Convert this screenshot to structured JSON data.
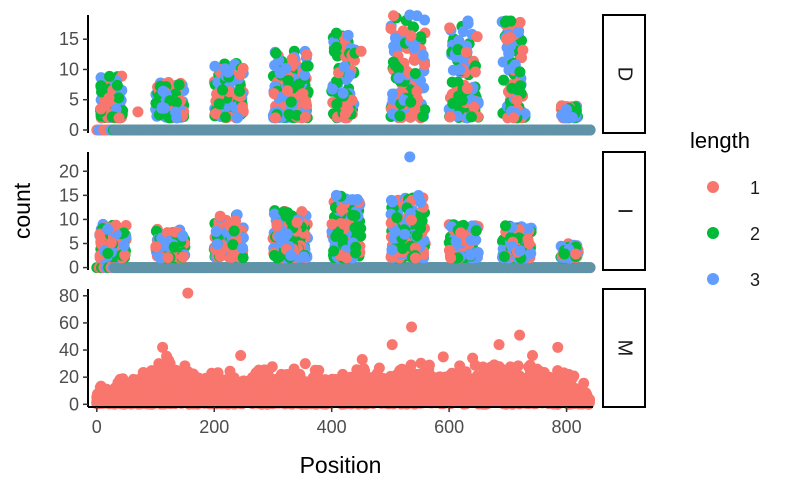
{
  "chart_data": {
    "type": "scatter",
    "xlabel": "Position",
    "ylabel": "count",
    "x_ticks": [
      0,
      200,
      400,
      600,
      800
    ],
    "xlim": [
      -15,
      845
    ],
    "legend": {
      "title": "length",
      "position": "right",
      "entries": [
        {
          "label": "1",
          "color": "#F8766D"
        },
        {
          "label": "2",
          "color": "#00BA38"
        },
        {
          "label": "3",
          "color": "#619CFF"
        }
      ]
    },
    "facets": [
      {
        "strip_label": "D",
        "ylim": [
          -0.5,
          19
        ],
        "y_ticks": [
          0,
          5,
          10,
          15
        ],
        "clusters": [
          {
            "x": [
              5,
              45
            ],
            "peak": 9,
            "series": [
              "1",
              "2",
              "3"
            ]
          },
          {
            "x": [
              100,
              150
            ],
            "peak": 8,
            "series": [
              "1",
              "2",
              "3"
            ]
          },
          {
            "x": [
              200,
              250
            ],
            "peak": 11,
            "series": [
              "1",
              "2",
              "3"
            ]
          },
          {
            "x": [
              300,
              360
            ],
            "peak": 13,
            "series": [
              "1",
              "2",
              "3"
            ]
          },
          {
            "x": [
              400,
              440
            ],
            "peak": 16,
            "series": [
              "1",
              "2",
              "3"
            ]
          },
          {
            "x": [
              500,
              560
            ],
            "peak": 19,
            "series": [
              "1",
              "2",
              "3"
            ]
          },
          {
            "x": [
              600,
              650
            ],
            "peak": 18,
            "series": [
              "1",
              "2",
              "3"
            ]
          },
          {
            "x": [
              690,
              730
            ],
            "peak": 18,
            "series": [
              "1",
              "2",
              "3"
            ]
          },
          {
            "x": [
              790,
              820
            ],
            "peak": 4,
            "series": [
              "1",
              "2",
              "3"
            ]
          }
        ],
        "outliers": [
          {
            "x": 70,
            "y": 3,
            "series": "1"
          },
          {
            "x": 408,
            "y": 16,
            "series": "2"
          },
          {
            "x": 450,
            "y": 13,
            "series": "1"
          },
          {
            "x": 533,
            "y": 19,
            "series": "3"
          },
          {
            "x": 632,
            "y": 18,
            "series": "3"
          },
          {
            "x": 698,
            "y": 18,
            "series": "2"
          },
          {
            "x": 705,
            "y": 18,
            "series": "2"
          }
        ]
      },
      {
        "strip_label": "I",
        "ylim": [
          -0.5,
          24
        ],
        "y_ticks": [
          0,
          5,
          10,
          15,
          20
        ],
        "clusters": [
          {
            "x": [
              5,
              50
            ],
            "peak": 9,
            "series": [
              "1",
              "2",
              "3"
            ]
          },
          {
            "x": [
              100,
              150
            ],
            "peak": 8,
            "series": [
              "1",
              "2",
              "3"
            ]
          },
          {
            "x": [
              200,
              250
            ],
            "peak": 11,
            "series": [
              "1",
              "2",
              "3"
            ]
          },
          {
            "x": [
              300,
              360
            ],
            "peak": 12,
            "series": [
              "1",
              "2",
              "3"
            ]
          },
          {
            "x": [
              400,
              450
            ],
            "peak": 15,
            "series": [
              "1",
              "2",
              "3"
            ]
          },
          {
            "x": [
              500,
              560
            ],
            "peak": 15,
            "series": [
              "1",
              "2",
              "3"
            ]
          },
          {
            "x": [
              600,
              650
            ],
            "peak": 9,
            "series": [
              "1",
              "2",
              "3"
            ]
          },
          {
            "x": [
              690,
              740
            ],
            "peak": 9,
            "series": [
              "1",
              "2",
              "3"
            ]
          },
          {
            "x": [
              790,
              820
            ],
            "peak": 5,
            "series": [
              "1",
              "2",
              "3"
            ]
          }
        ],
        "outliers": [
          {
            "x": 533,
            "y": 23,
            "series": "3"
          },
          {
            "x": 408,
            "y": 15,
            "series": "3"
          }
        ]
      },
      {
        "strip_label": "M",
        "ylim": [
          -2,
          85
        ],
        "y_ticks": [
          0,
          20,
          40,
          60,
          80
        ],
        "series": "1",
        "envelope": [
          [
            0,
            8
          ],
          [
            60,
            15
          ],
          [
            100,
            22
          ],
          [
            120,
            30
          ],
          [
            150,
            24
          ],
          [
            200,
            18
          ],
          [
            300,
            22
          ],
          [
            400,
            20
          ],
          [
            500,
            22
          ],
          [
            560,
            25
          ],
          [
            600,
            22
          ],
          [
            700,
            24
          ],
          [
            780,
            22
          ],
          [
            830,
            12
          ],
          [
            840,
            3
          ]
        ],
        "outliers": [
          {
            "x": 155,
            "y": 82
          },
          {
            "x": 536,
            "y": 57
          },
          {
            "x": 720,
            "y": 51
          },
          {
            "x": 112,
            "y": 42
          },
          {
            "x": 685,
            "y": 44
          },
          {
            "x": 503,
            "y": 44
          },
          {
            "x": 785,
            "y": 42
          },
          {
            "x": 245,
            "y": 36
          },
          {
            "x": 590,
            "y": 35
          },
          {
            "x": 640,
            "y": 34
          },
          {
            "x": 742,
            "y": 36
          },
          {
            "x": 452,
            "y": 33
          },
          {
            "x": 355,
            "y": 30
          }
        ]
      }
    ]
  }
}
